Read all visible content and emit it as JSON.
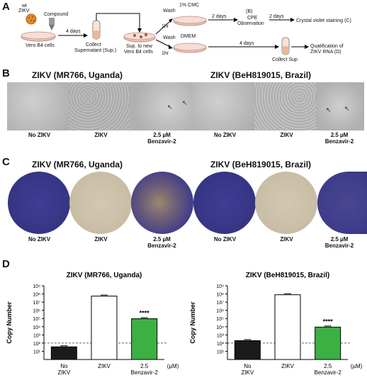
{
  "panels": {
    "a": "A",
    "b": "B",
    "c": "C",
    "d": "D"
  },
  "schematic": {
    "wt": "wt",
    "zikv": "ZIKV",
    "compound": "Compound",
    "vero": "Vero B4 cells",
    "four_days": "4 days",
    "collect": "Collect",
    "supernatant": "Supernatant (Sup.)",
    "sup_new": "Sup. to new",
    "vero_new": "Vero B4 cells",
    "cmc": "1% CMC",
    "wash1": "Wash",
    "hr1": "1hr",
    "two_days1": "2 days",
    "b_label": "(B)",
    "cpe": "CPE",
    "observation": "Observation",
    "two_days2": "2 days",
    "crystal": "Crystal violet staining (C)",
    "wash2": "Wash",
    "hr2": "1hr",
    "dmem": "DMEM",
    "four_days2": "4 days",
    "collect_sup": "Collect Sup",
    "quant": "Quatification of",
    "quant2": "ZIKV RNA (D)"
  },
  "strains": {
    "left": "ZIKV (MR766, Uganda)",
    "right": "ZIKV (BeH819015, Brazil)"
  },
  "conditions": {
    "no_zikv": "No ZIKV",
    "zikv": "ZIKV",
    "benz_conc": "2.5 µM",
    "benz_name": "Benzavir-2"
  },
  "colors": {
    "violet": "#3b3a8e",
    "clear": "#c9bfa8",
    "black_bar": "#1a1a1a",
    "green_bar": "#3cb043",
    "white_bar": "#ffffff"
  },
  "chart_data": [
    {
      "type": "bar",
      "title": "ZIKV (MR766, Uganda)",
      "ylabel": "Copy Number",
      "yscale": "log",
      "ylim": [
        1,
        1000000000
      ],
      "yticks": [
        "10¹",
        "10²",
        "10³",
        "10⁴",
        "10⁵",
        "10⁶",
        "10⁷",
        "10⁸",
        "10⁹"
      ],
      "threshold": 100,
      "categories": [
        "No ZIKV",
        "ZIKV",
        "2.5 Benzavir-2"
      ],
      "xtick_top": [
        "No",
        "ZIKV",
        "2.5"
      ],
      "xtick_bottom": [
        "ZIKV",
        "",
        "Benzavir-2"
      ],
      "unit": "(µM)",
      "values": [
        35,
        55000000,
        95000
      ],
      "bar_colors": [
        "#1a1a1a",
        "#ffffff",
        "#3cb043"
      ],
      "significance": [
        "",
        "",
        "****"
      ]
    },
    {
      "type": "bar",
      "title": "ZIKV (BeH819015, Brazil)",
      "ylabel": "Copy Number",
      "yscale": "log",
      "ylim": [
        1,
        1000000000
      ],
      "yticks": [
        "10¹",
        "10²",
        "10³",
        "10⁴",
        "10⁵",
        "10⁶",
        "10⁷",
        "10⁸",
        "10⁹"
      ],
      "threshold": 100,
      "categories": [
        "No ZIKV",
        "ZIKV",
        "2.5 Benzavir-2"
      ],
      "xtick_top": [
        "No",
        "ZIKV",
        "2.5"
      ],
      "xtick_bottom": [
        "ZIKV",
        "",
        "Benzavir-2"
      ],
      "unit": "(µM)",
      "values": [
        200,
        80000000,
        9000
      ],
      "bar_colors": [
        "#1a1a1a",
        "#ffffff",
        "#3cb043"
      ],
      "significance": [
        "",
        "",
        "****"
      ]
    }
  ]
}
